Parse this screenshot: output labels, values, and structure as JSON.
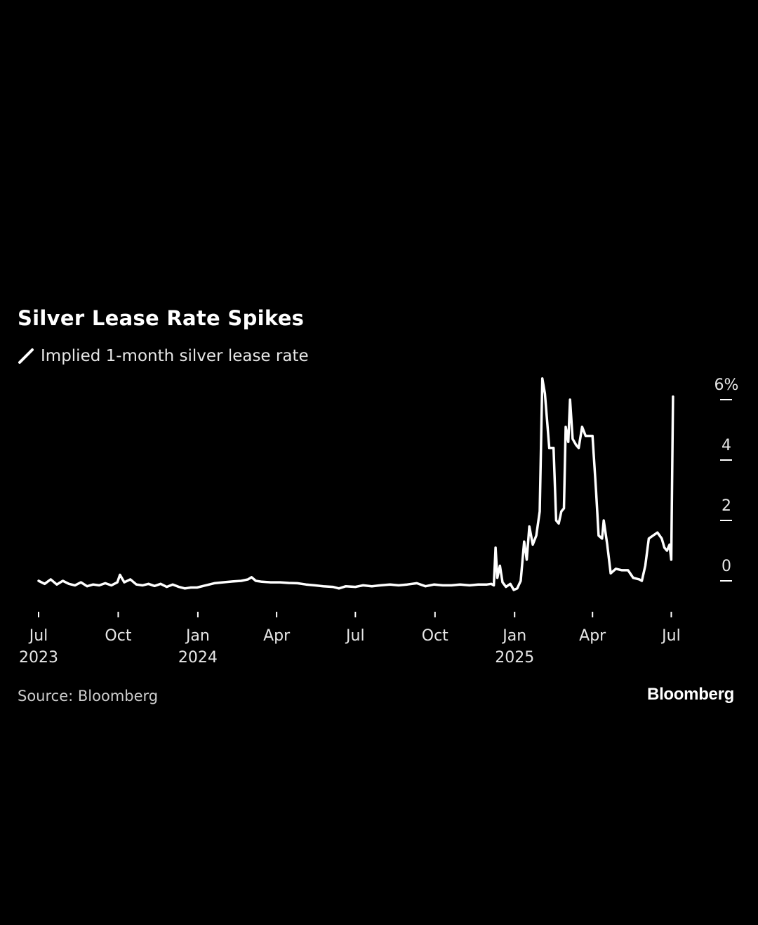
{
  "chart_data": {
    "type": "line",
    "title": "Silver Lease Rate Spikes",
    "xlabel": "",
    "ylabel": "",
    "y_unit_label": "6%",
    "ylim": [
      -0.4,
      6.5
    ],
    "y_ticks": [
      {
        "value": 0,
        "label": "0"
      },
      {
        "value": 2,
        "label": "2"
      },
      {
        "value": 4,
        "label": "4"
      },
      {
        "value": 6,
        "label": "6%"
      }
    ],
    "x_range": [
      "2023-07-01",
      "2025-07-12"
    ],
    "x_ticks": [
      {
        "date": "2023-07-01",
        "label": "Jul",
        "sublabel": "2023"
      },
      {
        "date": "2023-10-01",
        "label": "Oct",
        "sublabel": ""
      },
      {
        "date": "2024-01-01",
        "label": "Jan",
        "sublabel": "2024"
      },
      {
        "date": "2024-04-01",
        "label": "Apr",
        "sublabel": ""
      },
      {
        "date": "2024-07-01",
        "label": "Jul",
        "sublabel": ""
      },
      {
        "date": "2024-10-01",
        "label": "Oct",
        "sublabel": ""
      },
      {
        "date": "2025-01-01",
        "label": "Jan",
        "sublabel": "2025"
      },
      {
        "date": "2025-04-01",
        "label": "Apr",
        "sublabel": ""
      },
      {
        "date": "2025-07-01",
        "label": "Jul",
        "sublabel": ""
      }
    ],
    "grid": false,
    "legend_placement": "top-left",
    "line_color": "#ffffff",
    "series": [
      {
        "name": "Implied 1-month silver lease rate",
        "points": [
          [
            "2023-07-01",
            0.0
          ],
          [
            "2023-07-08",
            -0.1
          ],
          [
            "2023-07-15",
            0.05
          ],
          [
            "2023-07-22",
            -0.12
          ],
          [
            "2023-07-29",
            0.0
          ],
          [
            "2023-08-05",
            -0.1
          ],
          [
            "2023-08-12",
            -0.15
          ],
          [
            "2023-08-19",
            -0.05
          ],
          [
            "2023-08-26",
            -0.18
          ],
          [
            "2023-09-02",
            -0.12
          ],
          [
            "2023-09-09",
            -0.15
          ],
          [
            "2023-09-16",
            -0.08
          ],
          [
            "2023-09-23",
            -0.15
          ],
          [
            "2023-09-30",
            -0.05
          ],
          [
            "2023-10-03",
            0.2
          ],
          [
            "2023-10-08",
            -0.05
          ],
          [
            "2023-10-15",
            0.05
          ],
          [
            "2023-10-22",
            -0.12
          ],
          [
            "2023-10-29",
            -0.15
          ],
          [
            "2023-11-05",
            -0.1
          ],
          [
            "2023-11-12",
            -0.17
          ],
          [
            "2023-11-19",
            -0.1
          ],
          [
            "2023-11-26",
            -0.2
          ],
          [
            "2023-12-03",
            -0.12
          ],
          [
            "2023-12-10",
            -0.2
          ],
          [
            "2023-12-17",
            -0.25
          ],
          [
            "2023-12-24",
            -0.22
          ],
          [
            "2023-12-31",
            -0.22
          ],
          [
            "2024-01-10",
            -0.15
          ],
          [
            "2024-01-20",
            -0.08
          ],
          [
            "2024-01-30",
            -0.05
          ],
          [
            "2024-02-10",
            -0.02
          ],
          [
            "2024-02-20",
            0.0
          ],
          [
            "2024-02-28",
            0.05
          ],
          [
            "2024-03-03",
            0.12
          ],
          [
            "2024-03-08",
            0.0
          ],
          [
            "2024-03-15",
            -0.03
          ],
          [
            "2024-03-25",
            -0.05
          ],
          [
            "2024-04-05",
            -0.05
          ],
          [
            "2024-04-15",
            -0.07
          ],
          [
            "2024-04-25",
            -0.08
          ],
          [
            "2024-05-05",
            -0.12
          ],
          [
            "2024-05-15",
            -0.15
          ],
          [
            "2024-05-25",
            -0.18
          ],
          [
            "2024-06-05",
            -0.2
          ],
          [
            "2024-06-12",
            -0.25
          ],
          [
            "2024-06-20",
            -0.18
          ],
          [
            "2024-07-01",
            -0.2
          ],
          [
            "2024-07-10",
            -0.15
          ],
          [
            "2024-07-20",
            -0.18
          ],
          [
            "2024-07-30",
            -0.15
          ],
          [
            "2024-08-10",
            -0.12
          ],
          [
            "2024-08-20",
            -0.15
          ],
          [
            "2024-08-30",
            -0.12
          ],
          [
            "2024-09-10",
            -0.08
          ],
          [
            "2024-09-20",
            -0.18
          ],
          [
            "2024-09-30",
            -0.12
          ],
          [
            "2024-10-10",
            -0.15
          ],
          [
            "2024-10-20",
            -0.15
          ],
          [
            "2024-10-30",
            -0.12
          ],
          [
            "2024-11-10",
            -0.15
          ],
          [
            "2024-11-20",
            -0.12
          ],
          [
            "2024-11-30",
            -0.12
          ],
          [
            "2024-12-05",
            -0.1
          ],
          [
            "2024-12-08",
            -0.15
          ],
          [
            "2024-12-10",
            1.1
          ],
          [
            "2024-12-12",
            0.1
          ],
          [
            "2024-12-15",
            0.5
          ],
          [
            "2024-12-18",
            -0.05
          ],
          [
            "2024-12-22",
            -0.2
          ],
          [
            "2024-12-27",
            -0.1
          ],
          [
            "2024-12-31",
            -0.3
          ],
          [
            "2025-01-04",
            -0.25
          ],
          [
            "2025-01-08",
            0.0
          ],
          [
            "2025-01-12",
            1.3
          ],
          [
            "2025-01-15",
            0.7
          ],
          [
            "2025-01-18",
            1.8
          ],
          [
            "2025-01-22",
            1.2
          ],
          [
            "2025-01-26",
            1.5
          ],
          [
            "2025-01-30",
            2.3
          ],
          [
            "2025-02-02",
            6.7
          ],
          [
            "2025-02-05",
            6.2
          ],
          [
            "2025-02-10",
            4.4
          ],
          [
            "2025-02-15",
            4.4
          ],
          [
            "2025-02-18",
            2.0
          ],
          [
            "2025-02-21",
            1.9
          ],
          [
            "2025-02-24",
            2.3
          ],
          [
            "2025-02-27",
            2.4
          ],
          [
            "2025-03-01",
            5.1
          ],
          [
            "2025-03-04",
            4.6
          ],
          [
            "2025-03-06",
            6.0
          ],
          [
            "2025-03-09",
            4.7
          ],
          [
            "2025-03-13",
            4.5
          ],
          [
            "2025-03-16",
            4.4
          ],
          [
            "2025-03-20",
            5.1
          ],
          [
            "2025-03-24",
            4.8
          ],
          [
            "2025-03-28",
            4.8
          ],
          [
            "2025-04-01",
            4.8
          ],
          [
            "2025-04-05",
            3.0
          ],
          [
            "2025-04-08",
            1.5
          ],
          [
            "2025-04-12",
            1.4
          ],
          [
            "2025-04-14",
            2.0
          ],
          [
            "2025-04-18",
            1.2
          ],
          [
            "2025-04-22",
            0.25
          ],
          [
            "2025-04-28",
            0.4
          ],
          [
            "2025-05-05",
            0.35
          ],
          [
            "2025-05-12",
            0.35
          ],
          [
            "2025-05-18",
            0.1
          ],
          [
            "2025-05-25",
            0.05
          ],
          [
            "2025-05-28",
            0.0
          ],
          [
            "2025-06-01",
            0.5
          ],
          [
            "2025-06-05",
            1.4
          ],
          [
            "2025-06-10",
            1.5
          ],
          [
            "2025-06-15",
            1.6
          ],
          [
            "2025-06-20",
            1.4
          ],
          [
            "2025-06-23",
            1.1
          ],
          [
            "2025-06-26",
            1.0
          ],
          [
            "2025-06-29",
            1.2
          ],
          [
            "2025-07-01",
            0.7
          ],
          [
            "2025-07-03",
            6.1
          ]
        ]
      }
    ]
  },
  "source": "Source: Bloomberg",
  "brand": "Bloomberg",
  "colors": {
    "background": "#000000",
    "line": "#ffffff",
    "text": "#ffffff",
    "muted_text": "#cccccc"
  },
  "legend_icon": "line-swatch-icon"
}
